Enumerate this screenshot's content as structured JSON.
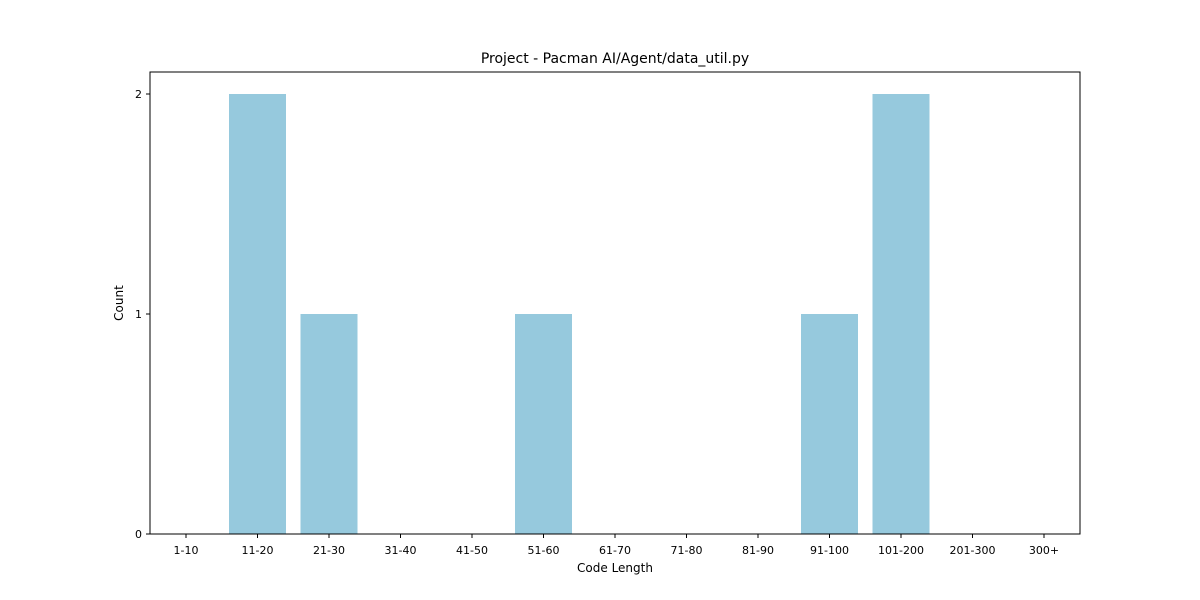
{
  "chart_data": {
    "type": "bar",
    "title": "Project - Pacman AI/Agent/data_util.py",
    "xlabel": "Code Length",
    "ylabel": "Count",
    "categories": [
      "1-10",
      "11-20",
      "21-30",
      "31-40",
      "41-50",
      "51-60",
      "61-70",
      "71-80",
      "81-90",
      "91-100",
      "101-200",
      "201-300",
      "300+"
    ],
    "values": [
      0,
      2,
      1,
      0,
      0,
      1,
      0,
      0,
      0,
      1,
      2,
      0,
      0
    ],
    "ylim": [
      0,
      2.1
    ],
    "yticks": [
      0,
      1,
      2
    ],
    "bar_color": "#96c9dd",
    "grid": false,
    "legend": "none"
  }
}
